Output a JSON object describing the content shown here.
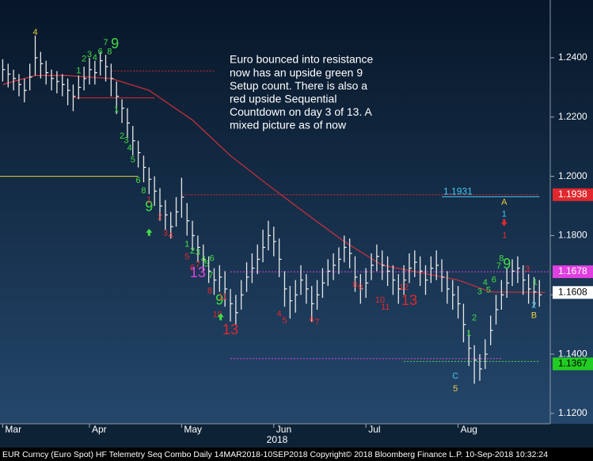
{
  "chart_data": {
    "type": "ohlc",
    "xlim": [
      -0.5,
      101
    ],
    "xticks": [
      {
        "value": 0,
        "label": "Mar"
      },
      {
        "value": 16,
        "label": "Apr"
      },
      {
        "value": 33,
        "label": "May"
      },
      {
        "value": 50,
        "label": "Jun"
      },
      {
        "value": 67,
        "label": "Jul"
      },
      {
        "value": 84,
        "label": "Aug"
      }
    ],
    "x_label": "2018",
    "ylim": [
      1.1165,
      1.2595
    ],
    "yticks": [
      {
        "value": 1.12,
        "label": "1.1200"
      },
      {
        "value": 1.14,
        "label": "1.1400"
      },
      {
        "value": 1.16,
        "label": "1.1600"
      },
      {
        "value": 1.18,
        "label": "1.1800"
      },
      {
        "value": 1.2,
        "label": "1.2000"
      },
      {
        "value": 1.22,
        "label": "1.2200"
      },
      {
        "value": 1.24,
        "label": "1.2400"
      }
    ],
    "bar_color": "#e8e8e8",
    "high": [
      1.2395,
      1.238,
      1.236,
      1.2345,
      1.233,
      1.238,
      1.2475,
      1.242,
      1.239,
      1.236,
      1.2355,
      1.2345,
      1.233,
      1.231,
      1.234,
      1.237,
      1.24,
      1.239,
      1.242,
      1.241,
      1.238,
      1.232,
      1.226,
      1.223,
      1.217,
      1.212,
      1.207,
      1.203,
      1.2,
      1.196,
      1.192,
      1.188,
      1.193,
      1.1995,
      1.191,
      1.185,
      1.18,
      1.177,
      1.173,
      1.169,
      1.17,
      1.168,
      1.162,
      1.16,
      1.165,
      1.171,
      1.174,
      1.177,
      1.182,
      1.185,
      1.183,
      1.179,
      1.168,
      1.163,
      1.165,
      1.17,
      1.167,
      1.163,
      1.165,
      1.169,
      1.172,
      1.174,
      1.176,
      1.18,
      1.179,
      1.173,
      1.167,
      1.169,
      1.174,
      1.177,
      1.175,
      1.173,
      1.17,
      1.167,
      1.17,
      1.174,
      1.175,
      1.173,
      1.17,
      1.173,
      1.175,
      1.172,
      1.168,
      1.165,
      1.163,
      1.157,
      1.148,
      1.143,
      1.14,
      1.145,
      1.153,
      1.16,
      1.165,
      1.169,
      1.172,
      1.173,
      1.17,
      1.167,
      1.166,
      1.165
    ],
    "low": [
      1.232,
      1.23,
      1.229,
      1.227,
      1.225,
      1.229,
      1.234,
      1.233,
      1.231,
      1.229,
      1.228,
      1.227,
      1.224,
      1.222,
      1.226,
      1.229,
      1.231,
      1.231,
      1.234,
      1.232,
      1.227,
      1.221,
      1.218,
      1.213,
      1.207,
      1.203,
      1.198,
      1.194,
      1.19,
      1.185,
      1.182,
      1.179,
      1.183,
      1.186,
      1.18,
      1.175,
      1.171,
      1.168,
      1.164,
      1.16,
      1.161,
      1.156,
      1.151,
      1.15,
      1.155,
      1.161,
      1.164,
      1.167,
      1.171,
      1.175,
      1.173,
      1.166,
      1.156,
      1.152,
      1.154,
      1.16,
      1.157,
      1.151,
      1.155,
      1.159,
      1.163,
      1.165,
      1.167,
      1.171,
      1.169,
      1.161,
      1.157,
      1.159,
      1.165,
      1.168,
      1.165,
      1.163,
      1.16,
      1.157,
      1.16,
      1.164,
      1.166,
      1.163,
      1.16,
      1.164,
      1.165,
      1.161,
      1.157,
      1.155,
      1.152,
      1.144,
      1.136,
      1.13,
      1.131,
      1.135,
      1.143,
      1.15,
      1.155,
      1.159,
      1.163,
      1.164,
      1.16,
      1.157,
      1.156,
      1.156
    ],
    "close": [
      1.236,
      1.2345,
      1.233,
      1.231,
      1.229,
      1.2335,
      1.24,
      1.238,
      1.235,
      1.233,
      1.232,
      1.231,
      1.229,
      1.227,
      1.23,
      1.233,
      1.236,
      1.235,
      1.239,
      1.237,
      1.233,
      1.227,
      1.223,
      1.218,
      1.212,
      1.208,
      1.203,
      1.199,
      1.195,
      1.19,
      1.187,
      1.183,
      1.188,
      1.193,
      1.185,
      1.18,
      1.176,
      1.172,
      1.168,
      1.165,
      1.166,
      1.162,
      1.157,
      1.154,
      1.16,
      1.166,
      1.169,
      1.172,
      1.176,
      1.18,
      1.178,
      1.172,
      1.162,
      1.158,
      1.16,
      1.165,
      1.162,
      1.157,
      1.16,
      1.164,
      1.168,
      1.17,
      1.172,
      1.176,
      1.174,
      1.166,
      1.162,
      1.164,
      1.17,
      1.173,
      1.17,
      1.168,
      1.165,
      1.162,
      1.165,
      1.169,
      1.171,
      1.168,
      1.165,
      1.169,
      1.17,
      1.166,
      1.162,
      1.16,
      1.157,
      1.15,
      1.142,
      1.138,
      1.135,
      1.14,
      1.148,
      1.155,
      1.16,
      1.164,
      1.168,
      1.169,
      1.165,
      1.162,
      1.161,
      1.16
    ],
    "ma": {
      "color": "#d0303a",
      "x": [
        0,
        6,
        12,
        20,
        27,
        35,
        42,
        49,
        57,
        63,
        70,
        77,
        84,
        90,
        100
      ],
      "values": [
        1.231,
        1.234,
        1.234,
        1.233,
        1.229,
        1.219,
        1.207,
        1.197,
        1.186,
        1.178,
        1.17,
        1.1675,
        1.165,
        1.161,
        1.1608
      ]
    },
    "levels": [
      {
        "value": 1.2,
        "color": "#e8d040",
        "style": "solid",
        "from": -0.5,
        "to": 25
      },
      {
        "value": 1.2355,
        "color": "#e0282e",
        "style": "dotted",
        "from": 20,
        "to": 39
      },
      {
        "value": 1.2265,
        "color": "#e0282e",
        "style": "solid",
        "from": 13,
        "to": 28
      },
      {
        "value": 1.1938,
        "color": "#e0282e",
        "style": "dotted",
        "from": 33,
        "to": 99
      },
      {
        "value": 1.1931,
        "color": "#44c8f0",
        "style": "solid",
        "from": 81,
        "to": 99
      },
      {
        "value": 1.1678,
        "color": "#e040e0",
        "style": "dotted",
        "from": 42,
        "to": 101
      },
      {
        "value": 1.1385,
        "color": "#e040e0",
        "style": "dotted",
        "from": 42,
        "to": 92
      },
      {
        "value": 1.1375,
        "color": "#44dd44",
        "style": "dotted",
        "from": 74,
        "to": 99
      }
    ],
    "level_label": 4,
    "price_tags": [
      {
        "value": 1.1938,
        "bg": "#e0282e",
        "fg": "#ffffff"
      },
      {
        "value": 1.1678,
        "bg": "#e040e0",
        "fg": "#ffffff"
      },
      {
        "value": 1.1608,
        "bg": "#ffffff",
        "fg": "#000000"
      },
      {
        "value": 1.1367,
        "bg": "#22cc22",
        "fg": "#000000"
      }
    ],
    "note": [
      "Euro bounced into resistance",
      "now has an upside green 9",
      "Setup count.  There is also a",
      "red upside Sequential",
      "Countdown on day 3 of 13.  A",
      "mixed picture as of now"
    ],
    "annotations": [
      {
        "text": "4",
        "color": "#e8d040",
        "x": 6,
        "y": 1.2485
      },
      {
        "text": "1",
        "color": "#44dd44",
        "x": 14,
        "y": 1.2355
      },
      {
        "text": "2",
        "color": "#44dd44",
        "x": 15,
        "y": 1.2395
      },
      {
        "text": "3",
        "color": "#44dd44",
        "x": 16,
        "y": 1.241
      },
      {
        "text": "4",
        "color": "#44dd44",
        "x": 17,
        "y": 1.24
      },
      {
        "text": "6",
        "color": "#44dd44",
        "x": 18,
        "y": 1.242
      },
      {
        "text": "7",
        "color": "#44dd44",
        "x": 19,
        "y": 1.245
      },
      {
        "text": "8",
        "color": "#44dd44",
        "x": 19.7,
        "y": 1.242
      },
      {
        "text": "9",
        "color": "#44dd44",
        "x": 20.7,
        "y": 1.2445,
        "size": "large"
      },
      {
        "text": "1",
        "color": "#44dd44",
        "x": 21,
        "y": 1.2225
      },
      {
        "text": "2",
        "color": "#44dd44",
        "x": 22,
        "y": 1.2135
      },
      {
        "text": "3",
        "color": "#44dd44",
        "x": 22.8,
        "y": 1.212
      },
      {
        "text": "4",
        "color": "#44dd44",
        "x": 23.4,
        "y": 1.2095
      },
      {
        "text": "5",
        "color": "#44dd44",
        "x": 24,
        "y": 1.2055
      },
      {
        "text": "6",
        "color": "#44dd44",
        "x": 25,
        "y": 1.1985
      },
      {
        "text": "8",
        "color": "#44dd44",
        "x": 26,
        "y": 1.195
      },
      {
        "text": "9",
        "color": "#44dd44",
        "x": 27,
        "y": 1.1895,
        "size": "large"
      },
      {
        "text": "1",
        "color": "#e0282e",
        "x": 27,
        "y": 1.1918
      },
      {
        "text": "2",
        "color": "#e0282e",
        "x": 29,
        "y": 1.1862
      },
      {
        "text": "3",
        "color": "#e0282e",
        "x": 30,
        "y": 1.1808
      },
      {
        "text": "4",
        "color": "#e0282e",
        "x": 31,
        "y": 1.18
      },
      {
        "text": "1",
        "color": "#44dd44",
        "x": 34,
        "y": 1.177
      },
      {
        "text": "2",
        "color": "#44dd44",
        "x": 35,
        "y": 1.1748
      },
      {
        "text": "3",
        "color": "#44dd44",
        "x": 36,
        "y": 1.1742
      },
      {
        "text": "4",
        "color": "#44dd44",
        "x": 37,
        "y": 1.172
      },
      {
        "text": "5",
        "color": "#44dd44",
        "x": 37.6,
        "y": 1.1703
      },
      {
        "text": "6",
        "color": "#44dd44",
        "x": 38.6,
        "y": 1.1722
      },
      {
        "text": "5",
        "color": "#e0282e",
        "x": 34,
        "y": 1.1728
      },
      {
        "text": "6",
        "color": "#e0282e",
        "x": 35,
        "y": 1.169
      },
      {
        "text": "7",
        "color": "#e0282e",
        "x": 36,
        "y": 1.17
      },
      {
        "text": "13",
        "color": "#e040e0",
        "x": 36,
        "y": 1.1672,
        "size": "large"
      },
      {
        "text": "7",
        "color": "#44dd44",
        "x": 38.4,
        "y": 1.1665
      },
      {
        "text": "8",
        "color": "#e0282e",
        "x": 38.2,
        "y": 1.1612
      },
      {
        "text": "9",
        "color": "#44dd44",
        "x": 40,
        "y": 1.158,
        "size": "large"
      },
      {
        "text": "11",
        "color": "#e0282e",
        "x": 40.6,
        "y": 1.1592
      },
      {
        "text": "10",
        "color": "#e0282e",
        "x": 39.6,
        "y": 1.1532
      },
      {
        "text": "13",
        "color": "#e0282e",
        "x": 42,
        "y": 1.148,
        "size": "large"
      },
      {
        "text": "4",
        "color": "#e0282e",
        "x": 51,
        "y": 1.1535
      },
      {
        "text": "5",
        "color": "#e0282e",
        "x": 52,
        "y": 1.1512
      },
      {
        "text": "6",
        "color": "#e0282e",
        "x": 57,
        "y": 1.1515
      },
      {
        "text": "7",
        "color": "#e0282e",
        "x": 58,
        "y": 1.1507
      },
      {
        "text": "8",
        "color": "#e0282e",
        "x": 65,
        "y": 1.1632
      },
      {
        "text": "9",
        "color": "#e0282e",
        "x": 66,
        "y": 1.1625
      },
      {
        "text": "10",
        "color": "#e0282e",
        "x": 69.6,
        "y": 1.1582
      },
      {
        "text": "11",
        "color": "#e0282e",
        "x": 70.6,
        "y": 1.1557
      },
      {
        "text": "12",
        "color": "#e0282e",
        "x": 74,
        "y": 1.1625
      },
      {
        "text": "13",
        "color": "#e0282e",
        "x": 75,
        "y": 1.1578,
        "size": "large"
      },
      {
        "text": "C",
        "color": "#44c8f0",
        "x": 83.5,
        "y": 1.1325
      },
      {
        "text": "5",
        "color": "#e8d040",
        "x": 83.5,
        "y": 1.1282
      },
      {
        "text": "1",
        "color": "#44dd44",
        "x": 86,
        "y": 1.147
      },
      {
        "text": "2",
        "color": "#44dd44",
        "x": 87,
        "y": 1.1522
      },
      {
        "text": "3",
        "color": "#44dd44",
        "x": 88,
        "y": 1.161
      },
      {
        "text": "4",
        "color": "#44dd44",
        "x": 89,
        "y": 1.164
      },
      {
        "text": "5",
        "color": "#44dd44",
        "x": 89.6,
        "y": 1.1615
      },
      {
        "text": "6",
        "color": "#44dd44",
        "x": 90.6,
        "y": 1.165
      },
      {
        "text": "7",
        "color": "#44dd44",
        "x": 91.5,
        "y": 1.1697
      },
      {
        "text": "8",
        "color": "#44dd44",
        "x": 92,
        "y": 1.1722
      },
      {
        "text": "9",
        "color": "#44dd44",
        "x": 93,
        "y": 1.1702,
        "size": "large"
      },
      {
        "text": "A",
        "color": "#e8d040",
        "x": 92.5,
        "y": 1.1912
      },
      {
        "text": "1",
        "color": "#44c8f0",
        "x": 92.5,
        "y": 1.1872
      },
      {
        "text": "1",
        "color": "#e0282e",
        "x": 92.6,
        "y": 1.18
      },
      {
        "text": "3",
        "color": "#e0282e",
        "x": 96.8,
        "y": 1.1686
      },
      {
        "text": "1",
        "color": "#44dd44",
        "x": 98.2,
        "y": 1.1642
      },
      {
        "text": "2",
        "color": "#44c8f0",
        "x": 98,
        "y": 1.1565
      },
      {
        "text": "B",
        "color": "#e8d040",
        "x": 98,
        "y": 1.153
      }
    ],
    "arrows": [
      {
        "dir": "up",
        "color": "#44dd44",
        "x": 27,
        "y": 1.181
      },
      {
        "dir": "up",
        "color": "#44dd44",
        "x": 40.2,
        "y": 1.1525
      },
      {
        "dir": "down",
        "color": "#e0282e",
        "x": 92.5,
        "y": 1.1845
      }
    ],
    "footer": "EUR Curncy (Euro Spot) HF Telemetry Seq Combo  Daily 14MAR2018-10SEP2018 Copyright© 2018 Bloomberg Finance L.P. 10-Sep-2018 10:32:24"
  }
}
